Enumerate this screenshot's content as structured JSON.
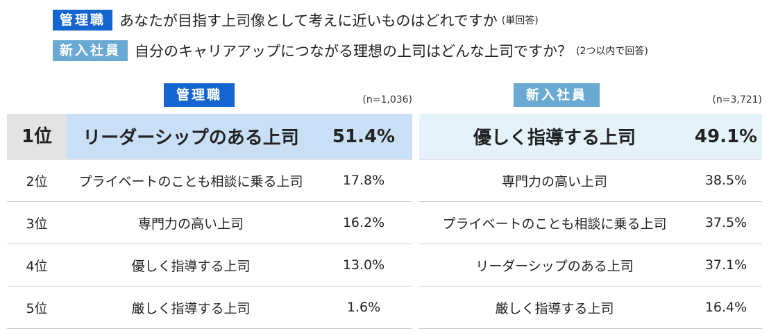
{
  "header": {
    "q1": {
      "badge": "管理職",
      "text": "あなたが目指す上司像として考えに近いものはどれですか",
      "note": "(単回答)"
    },
    "q2": {
      "badge": "新入社員",
      "text": "自分のキャリアアップにつながる理想の上司はどんな上司ですか？",
      "note": "(2つ以内で回答)"
    }
  },
  "chart_data": [
    {
      "type": "table",
      "title": "管理職",
      "n": "(n=1,036)",
      "rows": [
        {
          "rank": "1位",
          "label": "リーダーシップのある上司",
          "value": "51.4%"
        },
        {
          "rank": "2位",
          "label": "プライベートのことも相談に乗る上司",
          "value": "17.8%"
        },
        {
          "rank": "3位",
          "label": "専門力の高い上司",
          "value": "16.2%"
        },
        {
          "rank": "4位",
          "label": "優しく指導する上司",
          "value": "13.0%"
        },
        {
          "rank": "5位",
          "label": "厳しく指導する上司",
          "value": "1.6%"
        }
      ]
    },
    {
      "type": "table",
      "title": "新入社員",
      "n": "(n=3,721)",
      "rows": [
        {
          "label": "優しく指導する上司",
          "value": "49.1%"
        },
        {
          "label": "専門力の高い上司",
          "value": "38.5%"
        },
        {
          "label": "プライベートのことも相談に乗る上司",
          "value": "37.5%"
        },
        {
          "label": "リーダーシップのある上司",
          "value": "37.1%"
        },
        {
          "label": "厳しく指導する上司",
          "value": "16.4%"
        }
      ]
    }
  ]
}
